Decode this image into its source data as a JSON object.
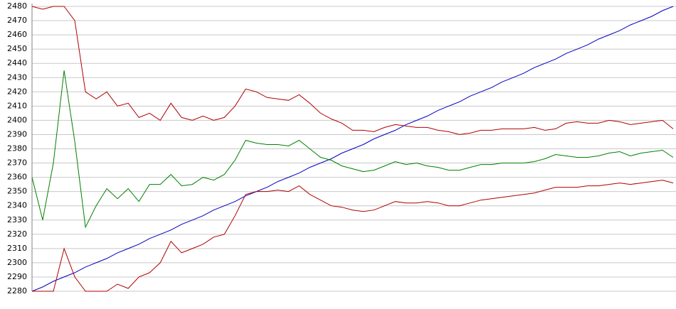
{
  "chart_data": {
    "type": "line",
    "ylim": [
      2280,
      2480
    ],
    "yticks": [
      2280,
      2290,
      2300,
      2310,
      2320,
      2330,
      2340,
      2350,
      2360,
      2370,
      2380,
      2390,
      2400,
      2410,
      2420,
      2430,
      2440,
      2450,
      2460,
      2470,
      2480
    ],
    "grid": true,
    "series": [
      {
        "color": "#0000c0",
        "values": [
          2280,
          2283,
          2287,
          2290,
          2293,
          2297,
          2300,
          2303,
          2307,
          2310,
          2313,
          2317,
          2320,
          2323,
          2327,
          2330,
          2333,
          2337,
          2340,
          2343,
          2347,
          2350,
          2353,
          2357,
          2360,
          2363,
          2367,
          2370,
          2373,
          2377,
          2380,
          2383,
          2387,
          2390,
          2393,
          2397,
          2400,
          2403,
          2407,
          2410,
          2413,
          2417,
          2420,
          2423,
          2427,
          2430,
          2433,
          2437,
          2440,
          2443,
          2447,
          2450,
          2453,
          2457,
          2460,
          2463,
          2467,
          2470,
          2473,
          2477,
          2480
        ]
      },
      {
        "color": "#b00000",
        "values": [
          2480,
          2478,
          2480,
          2480,
          2470,
          2420,
          2415,
          2420,
          2410,
          2412,
          2402,
          2405,
          2400,
          2412,
          2402,
          2400,
          2403,
          2400,
          2402,
          2410,
          2422,
          2420,
          2416,
          2415,
          2414,
          2418,
          2412,
          2405,
          2401,
          2398,
          2393,
          2393,
          2392,
          2395,
          2397,
          2396,
          2395,
          2395,
          2393,
          2392,
          2390,
          2391,
          2393,
          2393,
          2394,
          2394,
          2394,
          2395,
          2393,
          2394,
          2398,
          2399,
          2398,
          2398,
          2400,
          2399,
          2397,
          2398,
          2399,
          2400,
          2394
        ]
      },
      {
        "color": "#008000",
        "values": [
          2360,
          2330,
          2370,
          2435,
          2385,
          2325,
          2340,
          2352,
          2345,
          2352,
          2343,
          2355,
          2355,
          2362,
          2354,
          2355,
          2360,
          2358,
          2362,
          2372,
          2386,
          2384,
          2383,
          2383,
          2382,
          2386,
          2380,
          2374,
          2372,
          2368,
          2366,
          2364,
          2365,
          2368,
          2371,
          2369,
          2370,
          2368,
          2367,
          2365,
          2365,
          2367,
          2369,
          2369,
          2370,
          2370,
          2370,
          2371,
          2373,
          2376,
          2375,
          2374,
          2374,
          2375,
          2377,
          2378,
          2375,
          2377,
          2378,
          2379,
          2374
        ]
      },
      {
        "color": "#b00000",
        "values": [
          2280,
          2280,
          2280,
          2310,
          2290,
          2280,
          2280,
          2280,
          2285,
          2282,
          2290,
          2293,
          2300,
          2315,
          2307,
          2310,
          2313,
          2318,
          2320,
          2333,
          2348,
          2350,
          2350,
          2351,
          2350,
          2354,
          2348,
          2344,
          2340,
          2339,
          2337,
          2336,
          2337,
          2340,
          2343,
          2342,
          2342,
          2343,
          2342,
          2340,
          2340,
          2342,
          2344,
          2345,
          2346,
          2347,
          2348,
          2349,
          2351,
          2353,
          2353,
          2353,
          2354,
          2354,
          2355,
          2356,
          2355,
          2356,
          2357,
          2358,
          2356
        ]
      }
    ]
  }
}
